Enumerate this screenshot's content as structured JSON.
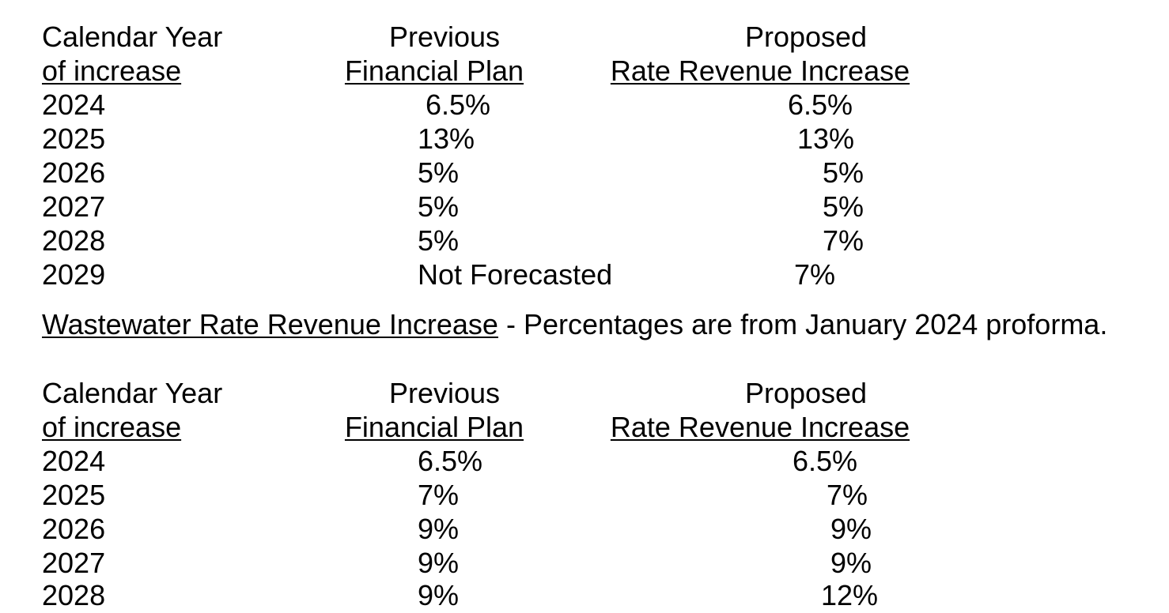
{
  "table1": {
    "headers": {
      "col1_line1": "Calendar Year",
      "col1_line2": "of increase",
      "col2_line1": "Previous",
      "col2_line2": "Financial Plan",
      "col3_line1": "Proposed",
      "col3_line2": "Rate Revenue Increase"
    },
    "rows": [
      {
        "year": "2024",
        "previous": "6.5%",
        "proposed": "6.5%"
      },
      {
        "year": "2025",
        "previous": "13%",
        "proposed": "13%"
      },
      {
        "year": "2026",
        "previous": "5%",
        "proposed": "5%"
      },
      {
        "year": "2027",
        "previous": "5%",
        "proposed": "5%"
      },
      {
        "year": "2028",
        "previous": "5%",
        "proposed": "7%"
      },
      {
        "year": "2029",
        "previous": "Not Forecasted",
        "proposed": "7%"
      }
    ]
  },
  "section2": {
    "title": "Wastewater Rate Revenue Increase",
    "note": " - Percentages are from January 2024 proforma."
  },
  "table2": {
    "headers": {
      "col1_line1": "Calendar Year",
      "col1_line2": "of increase",
      "col2_line1": "Previous",
      "col2_line2": "Financial Plan",
      "col3_line1": "Proposed",
      "col3_line2": "Rate Revenue Increase"
    },
    "rows": [
      {
        "year": "2024",
        "previous": "6.5%",
        "proposed": "6.5%"
      },
      {
        "year": "2025",
        "previous": "7%",
        "proposed": "7%"
      },
      {
        "year": "2026",
        "previous": "9%",
        "proposed": "9%"
      },
      {
        "year": "2027",
        "previous": "9%",
        "proposed": "9%"
      },
      {
        "year": "2028",
        "previous": "9%",
        "proposed": "12%"
      }
    ]
  }
}
